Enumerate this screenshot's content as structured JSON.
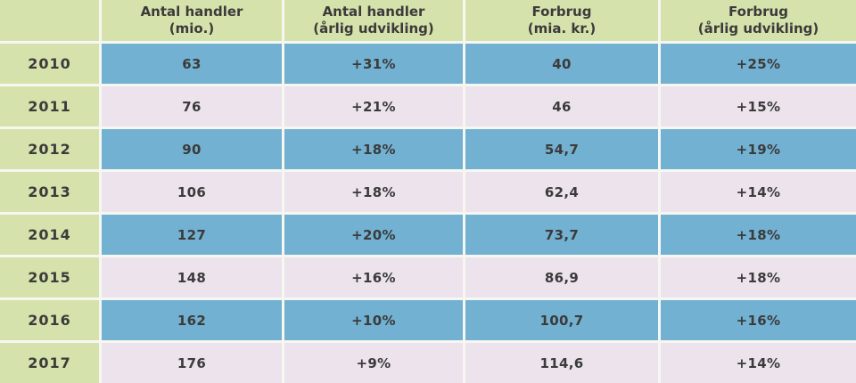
{
  "colors": {
    "header-green": "#d6e2ab",
    "row-blue": "#72b1d2",
    "row-pink": "#ece3ed",
    "separator": "#f7f7f2",
    "text": "#3b3b3b"
  },
  "header_lines": [
    {
      "l1": "Antal handler",
      "l2": "(mio.)"
    },
    {
      "l1": "Antal handler",
      "l2": "(årlig udvikling)"
    },
    {
      "l1": "Forbrug",
      "l2": "(mia. kr.)"
    },
    {
      "l1": "Forbrug",
      "l2": "(årlig udvikling)"
    }
  ],
  "chart_data": {
    "type": "table",
    "columns": [
      "",
      "Antal handler (mio.)",
      "Antal handler (årlig udvikling)",
      "Forbrug (mia. kr.)",
      "Forbrug (årlig udvikling)"
    ],
    "rows": [
      [
        "2010",
        "63",
        "+31%",
        "40",
        "+25%"
      ],
      [
        "2011",
        "76",
        "+21%",
        "46",
        "+15%"
      ],
      [
        "2012",
        "90",
        "+18%",
        "54,7",
        "+19%"
      ],
      [
        "2013",
        "106",
        "+18%",
        "62,4",
        "+14%"
      ],
      [
        "2014",
        "127",
        "+20%",
        "73,7",
        "+18%"
      ],
      [
        "2015",
        "148",
        "+16%",
        "86,9",
        "+18%"
      ],
      [
        "2016",
        "162",
        "+10%",
        "100,7",
        "+16%"
      ],
      [
        "2017",
        "176",
        "+9%",
        "114,6",
        "+14%"
      ]
    ]
  }
}
